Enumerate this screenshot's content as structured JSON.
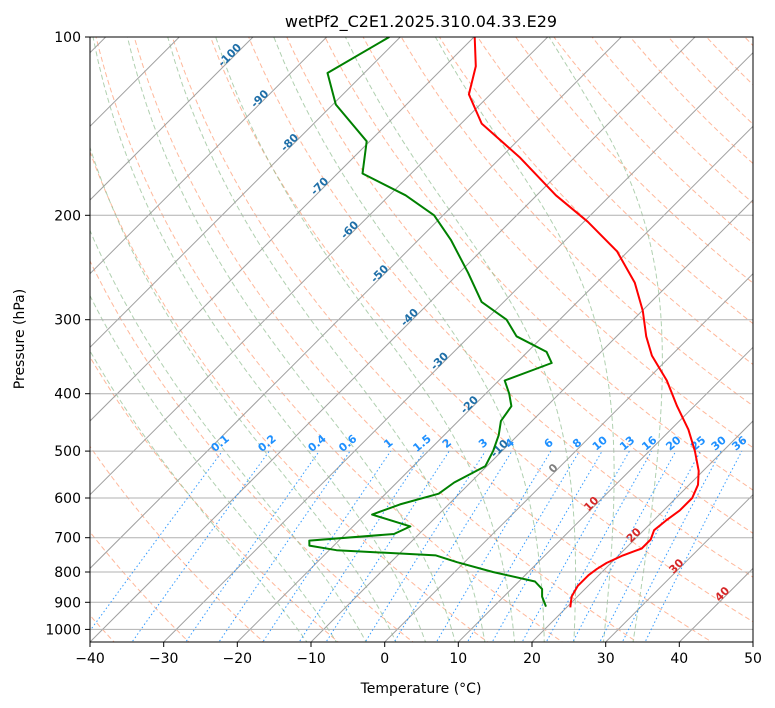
{
  "chart_data": {
    "type": "line",
    "subtype": "skew-t log-p diagram",
    "title": "wetPf2_C2E1.2025.310.04.33.E29",
    "xlabel": "Temperature (°C)",
    "ylabel": "Pressure (hPa)",
    "xlim": [
      -40,
      50
    ],
    "ylim": [
      1050,
      100
    ],
    "y_scale": "log",
    "grid": true,
    "x_ticks": [
      -40,
      -30,
      -20,
      -10,
      0,
      10,
      20,
      30,
      40,
      50
    ],
    "y_ticks": [
      100,
      200,
      300,
      400,
      500,
      600,
      700,
      800,
      900,
      1000
    ],
    "colors": {
      "temperature": "#ff0000",
      "dewpoint": "#008000",
      "isotherm": "#a0a0a0",
      "dry_adiabat": "#ffa07a",
      "moist_adiabat": "#8fbc8f",
      "mixing_ratio": "#1e90ff",
      "isotherm_label": "#1f6fa8",
      "mixing_ratio_label": "#1e90ff",
      "warm_label": "#d62728",
      "zero_label": "#808080"
    },
    "series": [
      {
        "name": "Temperature",
        "pressure": [
          918,
          880,
          845,
          810,
          790,
          772,
          750,
          730,
          705,
          680,
          655,
          630,
          600,
          570,
          540,
          500,
          460,
          420,
          380,
          345,
          320,
          290,
          260,
          230,
          205,
          185,
          160,
          140,
          125,
          112,
          100
        ],
        "values": [
          20.5,
          19.2,
          18.6,
          18.6,
          18.9,
          19.4,
          20.6,
          22.2,
          22.2,
          21.4,
          21.7,
          22.2,
          22.2,
          21.2,
          19.4,
          16.2,
          12.4,
          7.7,
          2.8,
          -2.6,
          -6.0,
          -9.9,
          -14.8,
          -21.5,
          -29.5,
          -37.4,
          -47.3,
          -57.2,
          -62.9,
          -65.8,
          -69.9
        ]
      },
      {
        "name": "Dewpoint",
        "pressure": [
          915,
          880,
          855,
          830,
          800,
          770,
          750,
          735,
          722,
          708,
          690,
          670,
          640,
          615,
          590,
          565,
          530,
          500,
          470,
          445,
          420,
          400,
          380,
          355,
          340,
          320,
          300,
          280,
          250,
          220,
          200,
          185,
          170,
          150,
          130,
          115,
          100
        ],
        "values": [
          17.1,
          15.2,
          14.2,
          12.2,
          5.2,
          -1.0,
          -4.8,
          -19.0,
          -23.3,
          -24.0,
          -13.4,
          -12.2,
          -19.0,
          -16.6,
          -12.8,
          -12.2,
          -10.2,
          -11.2,
          -12.6,
          -14.2,
          -14.8,
          -16.8,
          -19.2,
          -15.2,
          -17.4,
          -23.6,
          -27.2,
          -33.0,
          -38.8,
          -45.6,
          -51.2,
          -57.8,
          -66.6,
          -70.4,
          -79.6,
          -85.0,
          -81.5
        ]
      }
    ],
    "isotherm_labels": [
      "-100",
      "-90",
      "-80",
      "-70",
      "-60",
      "-50",
      "-40",
      "-30",
      "-20",
      "-10"
    ],
    "mixing_ratio_labels": [
      "0.1",
      "0.2",
      "0.4",
      "0.6",
      "1",
      "1.5",
      "2",
      "3",
      "4",
      "6",
      "8",
      "10",
      "13",
      "16",
      "20",
      "25",
      "30",
      "36"
    ],
    "warm_labels": [
      "0",
      "10",
      "20",
      "30",
      "40"
    ]
  }
}
